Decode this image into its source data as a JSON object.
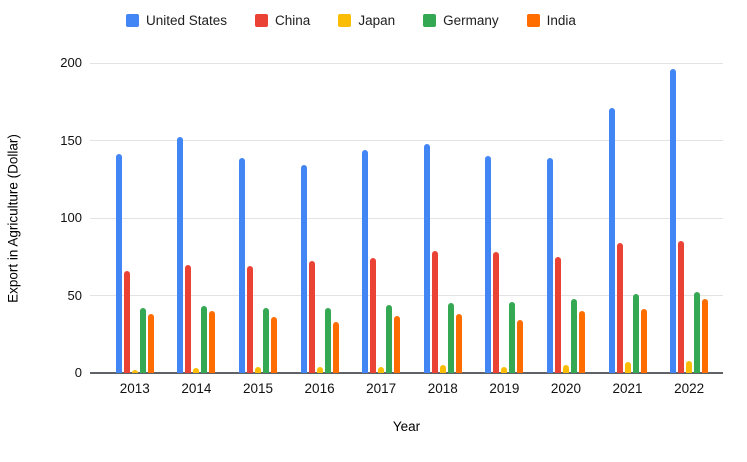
{
  "legend": {
    "items": [
      {
        "label": "United States",
        "color": "#4285F4"
      },
      {
        "label": "China",
        "color": "#EA4335"
      },
      {
        "label": "Japan",
        "color": "#FBBC04"
      },
      {
        "label": "Germany",
        "color": "#34A853"
      },
      {
        "label": "India",
        "color": "#FF6D01"
      }
    ]
  },
  "chart_data": {
    "type": "bar",
    "title": "",
    "xlabel": "Year",
    "ylabel": "Export in Agriculture (Dollar)",
    "ylim": [
      0,
      200
    ],
    "yticks": [
      0,
      50,
      100,
      150,
      200
    ],
    "grid": true,
    "legend_position": "top",
    "categories": [
      "2013",
      "2014",
      "2015",
      "2016",
      "2017",
      "2018",
      "2019",
      "2020",
      "2021",
      "2022"
    ],
    "series": [
      {
        "name": "United States",
        "color": "#4285F4",
        "values": [
          141,
          152,
          139,
          134,
          144,
          148,
          140,
          139,
          171,
          196
        ]
      },
      {
        "name": "China",
        "color": "#EA4335",
        "values": [
          66,
          70,
          69,
          72,
          74,
          79,
          78,
          75,
          84,
          85
        ]
      },
      {
        "name": "Japan",
        "color": "#FBBC04",
        "values": [
          2,
          3,
          4,
          4,
          4,
          5,
          4,
          5,
          7,
          8
        ]
      },
      {
        "name": "Germany",
        "color": "#34A853",
        "values": [
          42,
          43,
          42,
          42,
          44,
          45,
          46,
          48,
          51,
          52
        ]
      },
      {
        "name": "India",
        "color": "#FF6D01",
        "values": [
          38,
          40,
          36,
          33,
          37,
          38,
          34,
          40,
          41,
          48
        ]
      }
    ],
    "axis_colors": {
      "gridline": "#e3e3e3",
      "baseline": "#5f6368"
    }
  }
}
